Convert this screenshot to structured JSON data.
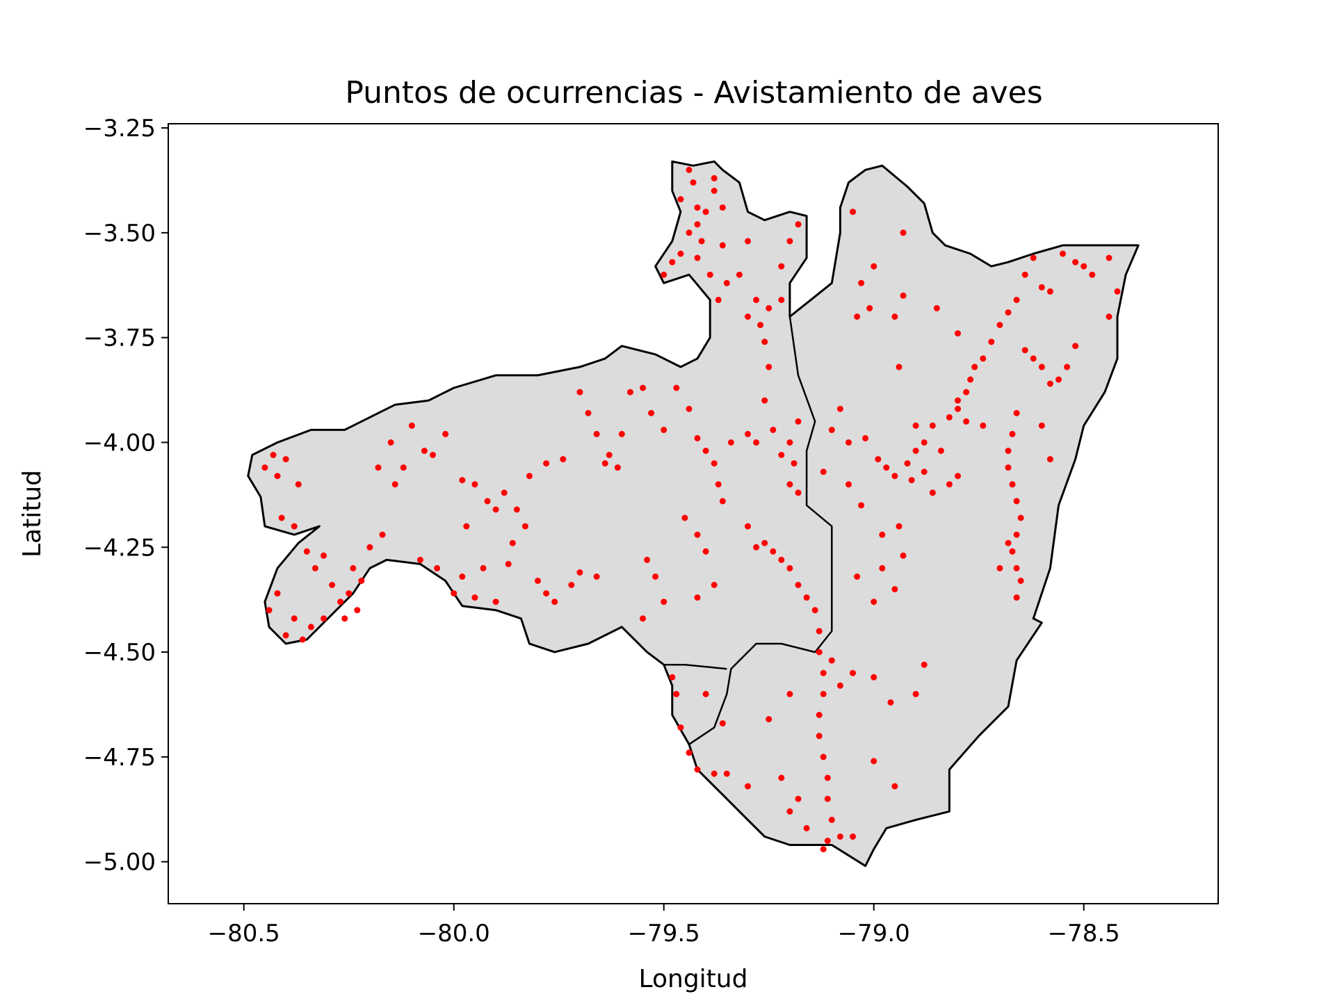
{
  "chart_data": {
    "type": "scatter",
    "title": "Puntos de ocurrencias - Avistamiento de aves",
    "xlabel": "Longitud",
    "ylabel": "Latitud",
    "xlim": [
      -80.68,
      -78.18
    ],
    "ylim": [
      -5.1,
      -3.24
    ],
    "xticks": [
      -80.5,
      -80.0,
      -79.5,
      -79.0,
      -78.5
    ],
    "xtick_labels": [
      "−80.5",
      "−80.0",
      "−79.5",
      "−79.0",
      "−78.5"
    ],
    "yticks": [
      -3.25,
      -3.5,
      -3.75,
      -4.0,
      -4.25,
      -4.5,
      -4.75,
      -5.0
    ],
    "ytick_labels": [
      "−3.25",
      "−3.50",
      "−3.75",
      "−4.00",
      "−4.25",
      "−4.50",
      "−4.75",
      "−5.00"
    ],
    "grid": false,
    "colors": {
      "region_fill": "#dcdcdc",
      "border": "#000000",
      "points": "#ff0000"
    },
    "region_outline": [
      [
        -80.32,
        -4.2
      ],
      [
        -80.37,
        -4.24
      ],
      [
        -80.42,
        -4.3
      ],
      [
        -80.45,
        -4.38
      ],
      [
        -80.44,
        -4.44
      ],
      [
        -80.4,
        -4.48
      ],
      [
        -80.35,
        -4.47
      ],
      [
        -80.3,
        -4.42
      ],
      [
        -80.24,
        -4.36
      ],
      [
        -80.2,
        -4.3
      ],
      [
        -80.16,
        -4.28
      ],
      [
        -80.08,
        -4.29
      ],
      [
        -80.02,
        -4.33
      ],
      [
        -79.98,
        -4.39
      ],
      [
        -79.9,
        -4.4
      ],
      [
        -79.84,
        -4.42
      ],
      [
        -79.82,
        -4.48
      ],
      [
        -79.76,
        -4.5
      ],
      [
        -79.68,
        -4.48
      ],
      [
        -79.6,
        -4.44
      ],
      [
        -79.54,
        -4.5
      ],
      [
        -79.5,
        -4.53
      ],
      [
        -79.48,
        -4.58
      ],
      [
        -79.48,
        -4.65
      ],
      [
        -79.44,
        -4.72
      ],
      [
        -79.42,
        -4.78
      ],
      [
        -79.36,
        -4.84
      ],
      [
        -79.3,
        -4.9
      ],
      [
        -79.26,
        -4.94
      ],
      [
        -79.2,
        -4.96
      ],
      [
        -79.1,
        -4.96
      ],
      [
        -79.02,
        -5.01
      ],
      [
        -79.0,
        -4.97
      ],
      [
        -78.97,
        -4.92
      ],
      [
        -78.9,
        -4.9
      ],
      [
        -78.82,
        -4.88
      ],
      [
        -78.82,
        -4.78
      ],
      [
        -78.75,
        -4.7
      ],
      [
        -78.68,
        -4.63
      ],
      [
        -78.66,
        -4.52
      ],
      [
        -78.6,
        -4.43
      ],
      [
        -78.62,
        -4.42
      ],
      [
        -78.58,
        -4.3
      ],
      [
        -78.56,
        -4.15
      ],
      [
        -78.52,
        -4.04
      ],
      [
        -78.5,
        -3.96
      ],
      [
        -78.45,
        -3.88
      ],
      [
        -78.42,
        -3.8
      ],
      [
        -78.42,
        -3.7
      ],
      [
        -78.4,
        -3.6
      ],
      [
        -78.37,
        -3.53
      ],
      [
        -78.45,
        -3.53
      ],
      [
        -78.55,
        -3.53
      ],
      [
        -78.62,
        -3.55
      ],
      [
        -78.68,
        -3.57
      ],
      [
        -78.72,
        -3.58
      ],
      [
        -78.77,
        -3.55
      ],
      [
        -78.83,
        -3.53
      ],
      [
        -78.86,
        -3.5
      ],
      [
        -78.88,
        -3.43
      ],
      [
        -78.92,
        -3.39
      ],
      [
        -78.98,
        -3.34
      ],
      [
        -79.02,
        -3.35
      ],
      [
        -79.06,
        -3.38
      ],
      [
        -79.08,
        -3.44
      ],
      [
        -79.08,
        -3.5
      ],
      [
        -79.1,
        -3.62
      ],
      [
        -79.15,
        -3.66
      ],
      [
        -79.2,
        -3.7
      ],
      [
        -79.2,
        -3.62
      ],
      [
        -79.16,
        -3.56
      ],
      [
        -79.16,
        -3.46
      ],
      [
        -79.2,
        -3.45
      ],
      [
        -79.26,
        -3.47
      ],
      [
        -79.3,
        -3.45
      ],
      [
        -79.32,
        -3.38
      ],
      [
        -79.36,
        -3.35
      ],
      [
        -79.38,
        -3.33
      ],
      [
        -79.43,
        -3.34
      ],
      [
        -79.48,
        -3.33
      ],
      [
        -79.48,
        -3.4
      ],
      [
        -79.46,
        -3.45
      ],
      [
        -79.48,
        -3.52
      ],
      [
        -79.52,
        -3.58
      ],
      [
        -79.5,
        -3.62
      ],
      [
        -79.44,
        -3.6
      ],
      [
        -79.39,
        -3.66
      ],
      [
        -79.39,
        -3.75
      ],
      [
        -79.42,
        -3.8
      ],
      [
        -79.46,
        -3.82
      ],
      [
        -79.52,
        -3.79
      ],
      [
        -79.6,
        -3.77
      ],
      [
        -79.64,
        -3.8
      ],
      [
        -79.7,
        -3.82
      ],
      [
        -79.8,
        -3.84
      ],
      [
        -79.9,
        -3.84
      ],
      [
        -80.0,
        -3.87
      ],
      [
        -80.06,
        -3.9
      ],
      [
        -80.14,
        -3.91
      ],
      [
        -80.2,
        -3.94
      ],
      [
        -80.26,
        -3.97
      ],
      [
        -80.34,
        -3.97
      ],
      [
        -80.42,
        -4.0
      ],
      [
        -80.48,
        -4.03
      ],
      [
        -80.49,
        -4.08
      ],
      [
        -80.46,
        -4.13
      ],
      [
        -80.45,
        -4.2
      ],
      [
        -80.38,
        -4.22
      ]
    ],
    "internal_borders": [
      [
        [
          -79.2,
          -3.7
        ],
        [
          -79.18,
          -3.84
        ],
        [
          -79.14,
          -3.95
        ],
        [
          -79.16,
          -4.02
        ],
        [
          -79.16,
          -4.15
        ],
        [
          -79.1,
          -4.2
        ],
        [
          -79.1,
          -4.38
        ],
        [
          -79.1,
          -4.45
        ],
        [
          -79.14,
          -4.5
        ],
        [
          -79.22,
          -4.48
        ],
        [
          -79.28,
          -4.48
        ],
        [
          -79.34,
          -4.54
        ],
        [
          -79.35,
          -4.6
        ],
        [
          -79.38,
          -4.68
        ],
        [
          -79.44,
          -4.72
        ]
      ],
      [
        [
          -79.35,
          -4.54
        ],
        [
          -79.45,
          -4.53
        ],
        [
          -79.5,
          -4.53
        ]
      ]
    ],
    "points": [
      [
        -80.45,
        -4.06
      ],
      [
        -80.43,
        -4.03
      ],
      [
        -80.42,
        -4.08
      ],
      [
        -80.4,
        -4.04
      ],
      [
        -80.41,
        -4.18
      ],
      [
        -80.38,
        -4.2
      ],
      [
        -80.37,
        -4.1
      ],
      [
        -80.35,
        -4.26
      ],
      [
        -80.33,
        -4.3
      ],
      [
        -80.31,
        -4.27
      ],
      [
        -80.29,
        -4.34
      ],
      [
        -80.27,
        -4.38
      ],
      [
        -80.25,
        -4.36
      ],
      [
        -80.23,
        -4.4
      ],
      [
        -80.24,
        -4.3
      ],
      [
        -80.22,
        -4.33
      ],
      [
        -80.38,
        -4.42
      ],
      [
        -80.34,
        -4.44
      ],
      [
        -80.31,
        -4.42
      ],
      [
        -80.36,
        -4.47
      ],
      [
        -80.42,
        -4.36
      ],
      [
        -80.44,
        -4.4
      ],
      [
        -80.4,
        -4.46
      ],
      [
        -80.26,
        -4.42
      ],
      [
        -80.2,
        -4.25
      ],
      [
        -80.17,
        -4.22
      ],
      [
        -80.14,
        -4.1
      ],
      [
        -80.12,
        -4.06
      ],
      [
        -80.1,
        -3.96
      ],
      [
        -80.07,
        -4.02
      ],
      [
        -80.05,
        -4.03
      ],
      [
        -80.02,
        -3.98
      ],
      [
        -80.15,
        -4.0
      ],
      [
        -80.18,
        -4.06
      ],
      [
        -79.98,
        -4.09
      ],
      [
        -79.95,
        -4.1
      ],
      [
        -79.92,
        -4.14
      ],
      [
        -79.9,
        -4.16
      ],
      [
        -79.88,
        -4.12
      ],
      [
        -79.85,
        -4.16
      ],
      [
        -79.83,
        -4.2
      ],
      [
        -79.86,
        -4.24
      ],
      [
        -79.87,
        -4.29
      ],
      [
        -79.82,
        -4.08
      ],
      [
        -79.78,
        -4.05
      ],
      [
        -79.74,
        -4.04
      ],
      [
        -79.8,
        -4.33
      ],
      [
        -79.78,
        -4.36
      ],
      [
        -79.76,
        -4.38
      ],
      [
        -79.72,
        -4.34
      ],
      [
        -79.7,
        -4.31
      ],
      [
        -79.66,
        -4.32
      ],
      [
        -79.9,
        -4.38
      ],
      [
        -79.95,
        -4.37
      ],
      [
        -79.98,
        -4.32
      ],
      [
        -80.0,
        -4.36
      ],
      [
        -80.04,
        -4.3
      ],
      [
        -80.08,
        -4.28
      ],
      [
        -79.93,
        -4.3
      ],
      [
        -79.97,
        -4.2
      ],
      [
        -79.7,
        -3.88
      ],
      [
        -79.68,
        -3.93
      ],
      [
        -79.66,
        -3.98
      ],
      [
        -79.64,
        -4.05
      ],
      [
        -79.63,
        -4.03
      ],
      [
        -79.61,
        -4.06
      ],
      [
        -79.6,
        -3.98
      ],
      [
        -79.58,
        -3.88
      ],
      [
        -79.55,
        -3.87
      ],
      [
        -79.53,
        -3.93
      ],
      [
        -79.5,
        -3.97
      ],
      [
        -79.47,
        -3.87
      ],
      [
        -79.44,
        -3.92
      ],
      [
        -79.42,
        -3.99
      ],
      [
        -79.4,
        -4.02
      ],
      [
        -79.38,
        -4.05
      ],
      [
        -79.37,
        -4.1
      ],
      [
        -79.36,
        -4.14
      ],
      [
        -79.34,
        -4.0
      ],
      [
        -79.3,
        -3.98
      ],
      [
        -79.28,
        -4.0
      ],
      [
        -79.45,
        -4.18
      ],
      [
        -79.42,
        -4.22
      ],
      [
        -79.4,
        -4.26
      ],
      [
        -79.5,
        -4.38
      ],
      [
        -79.52,
        -4.32
      ],
      [
        -79.54,
        -4.28
      ],
      [
        -79.55,
        -4.42
      ],
      [
        -79.42,
        -4.37
      ],
      [
        -79.38,
        -4.34
      ],
      [
        -79.3,
        -4.2
      ],
      [
        -79.28,
        -4.25
      ],
      [
        -79.26,
        -4.24
      ],
      [
        -79.24,
        -4.26
      ],
      [
        -79.22,
        -4.28
      ],
      [
        -79.2,
        -4.3
      ],
      [
        -79.18,
        -4.34
      ],
      [
        -79.16,
        -4.37
      ],
      [
        -79.14,
        -4.4
      ],
      [
        -79.13,
        -4.45
      ],
      [
        -79.13,
        -4.5
      ],
      [
        -79.12,
        -4.55
      ],
      [
        -79.12,
        -4.6
      ],
      [
        -79.13,
        -4.65
      ],
      [
        -79.13,
        -4.7
      ],
      [
        -79.12,
        -4.75
      ],
      [
        -79.11,
        -4.8
      ],
      [
        -79.11,
        -4.85
      ],
      [
        -79.1,
        -4.9
      ],
      [
        -79.11,
        -4.95
      ],
      [
        -79.12,
        -4.97
      ],
      [
        -79.08,
        -4.94
      ],
      [
        -79.05,
        -4.94
      ],
      [
        -79.16,
        -4.92
      ],
      [
        -79.2,
        -4.88
      ],
      [
        -79.18,
        -4.85
      ],
      [
        -79.3,
        -4.82
      ],
      [
        -79.35,
        -4.79
      ],
      [
        -79.38,
        -4.79
      ],
      [
        -79.42,
        -4.78
      ],
      [
        -79.44,
        -4.74
      ],
      [
        -79.46,
        -4.68
      ],
      [
        -79.47,
        -4.6
      ],
      [
        -79.48,
        -4.56
      ],
      [
        -79.4,
        -4.6
      ],
      [
        -79.36,
        -4.67
      ],
      [
        -79.2,
        -4.6
      ],
      [
        -79.25,
        -4.66
      ],
      [
        -79.22,
        -4.8
      ],
      [
        -79.05,
        -4.55
      ],
      [
        -79.0,
        -4.56
      ],
      [
        -78.96,
        -4.62
      ],
      [
        -78.95,
        -4.82
      ],
      [
        -79.0,
        -4.76
      ],
      [
        -78.88,
        -4.53
      ],
      [
        -78.9,
        -4.6
      ],
      [
        -79.1,
        -4.52
      ],
      [
        -79.08,
        -4.58
      ],
      [
        -79.2,
        -4.0
      ],
      [
        -79.18,
        -3.95
      ],
      [
        -79.19,
        -4.05
      ],
      [
        -79.2,
        -4.1
      ],
      [
        -79.18,
        -4.12
      ],
      [
        -79.22,
        -4.03
      ],
      [
        -79.24,
        -3.97
      ],
      [
        -79.26,
        -3.9
      ],
      [
        -79.25,
        -3.82
      ],
      [
        -79.26,
        -3.76
      ],
      [
        -79.27,
        -3.72
      ],
      [
        -79.25,
        -3.68
      ],
      [
        -79.22,
        -3.66
      ],
      [
        -79.28,
        -3.66
      ],
      [
        -79.3,
        -3.7
      ],
      [
        -79.22,
        -3.58
      ],
      [
        -79.2,
        -3.52
      ],
      [
        -79.18,
        -3.48
      ],
      [
        -79.32,
        -3.6
      ],
      [
        -79.35,
        -3.62
      ],
      [
        -79.3,
        -3.52
      ],
      [
        -79.36,
        -3.53
      ],
      [
        -79.38,
        -3.4
      ],
      [
        -79.38,
        -3.37
      ],
      [
        -79.4,
        -3.45
      ],
      [
        -79.42,
        -3.48
      ],
      [
        -79.44,
        -3.5
      ],
      [
        -79.46,
        -3.55
      ],
      [
        -79.48,
        -3.57
      ],
      [
        -79.5,
        -3.6
      ],
      [
        -79.42,
        -3.56
      ],
      [
        -79.41,
        -3.52
      ],
      [
        -79.39,
        -3.6
      ],
      [
        -79.37,
        -3.66
      ],
      [
        -79.43,
        -3.38
      ],
      [
        -79.44,
        -3.35
      ],
      [
        -79.46,
        -3.42
      ],
      [
        -79.42,
        -3.44
      ],
      [
        -79.36,
        -3.44
      ],
      [
        -79.1,
        -3.97
      ],
      [
        -79.06,
        -4.0
      ],
      [
        -79.02,
        -3.99
      ],
      [
        -78.99,
        -4.04
      ],
      [
        -78.97,
        -4.06
      ],
      [
        -78.95,
        -4.08
      ],
      [
        -78.92,
        -4.05
      ],
      [
        -78.9,
        -4.02
      ],
      [
        -78.88,
        -4.0
      ],
      [
        -78.86,
        -3.96
      ],
      [
        -78.82,
        -3.94
      ],
      [
        -78.8,
        -3.92
      ],
      [
        -78.78,
        -3.88
      ],
      [
        -78.77,
        -3.85
      ],
      [
        -78.76,
        -3.82
      ],
      [
        -78.74,
        -3.8
      ],
      [
        -78.72,
        -3.76
      ],
      [
        -78.7,
        -3.72
      ],
      [
        -78.68,
        -3.69
      ],
      [
        -78.66,
        -3.66
      ],
      [
        -78.64,
        -3.6
      ],
      [
        -78.62,
        -3.56
      ],
      [
        -78.6,
        -3.63
      ],
      [
        -78.58,
        -3.64
      ],
      [
        -78.55,
        -3.55
      ],
      [
        -78.52,
        -3.57
      ],
      [
        -78.5,
        -3.58
      ],
      [
        -78.48,
        -3.6
      ],
      [
        -78.44,
        -3.56
      ],
      [
        -78.42,
        -3.64
      ],
      [
        -78.44,
        -3.7
      ],
      [
        -78.52,
        -3.77
      ],
      [
        -78.54,
        -3.82
      ],
      [
        -78.56,
        -3.85
      ],
      [
        -78.58,
        -3.86
      ],
      [
        -78.6,
        -3.82
      ],
      [
        -78.62,
        -3.8
      ],
      [
        -78.64,
        -3.78
      ],
      [
        -78.66,
        -3.93
      ],
      [
        -78.67,
        -3.98
      ],
      [
        -78.68,
        -4.02
      ],
      [
        -78.68,
        -4.06
      ],
      [
        -78.67,
        -4.1
      ],
      [
        -78.66,
        -4.14
      ],
      [
        -78.65,
        -4.18
      ],
      [
        -78.66,
        -4.22
      ],
      [
        -78.67,
        -4.26
      ],
      [
        -78.66,
        -4.3
      ],
      [
        -78.65,
        -4.33
      ],
      [
        -78.66,
        -4.37
      ],
      [
        -78.7,
        -4.3
      ],
      [
        -78.68,
        -4.24
      ],
      [
        -78.6,
        -3.96
      ],
      [
        -78.58,
        -4.04
      ],
      [
        -78.84,
        -4.02
      ],
      [
        -78.82,
        -4.1
      ],
      [
        -78.8,
        -4.08
      ],
      [
        -78.9,
        -3.96
      ],
      [
        -79.0,
        -3.58
      ],
      [
        -79.01,
        -3.68
      ],
      [
        -78.93,
        -3.65
      ],
      [
        -78.94,
        -3.82
      ],
      [
        -78.95,
        -3.7
      ],
      [
        -78.85,
        -3.68
      ],
      [
        -78.8,
        -3.74
      ],
      [
        -79.08,
        -3.92
      ],
      [
        -79.12,
        -4.07
      ],
      [
        -79.06,
        -4.1
      ],
      [
        -79.03,
        -4.15
      ],
      [
        -78.98,
        -4.22
      ],
      [
        -78.94,
        -4.2
      ],
      [
        -78.93,
        -4.27
      ],
      [
        -78.98,
        -4.3
      ],
      [
        -79.0,
        -4.38
      ],
      [
        -78.95,
        -4.35
      ],
      [
        -79.04,
        -4.32
      ],
      [
        -79.04,
        -3.7
      ],
      [
        -79.03,
        -3.62
      ],
      [
        -79.05,
        -3.45
      ],
      [
        -78.93,
        -3.5
      ],
      [
        -78.8,
        -3.9
      ],
      [
        -78.78,
        -3.95
      ],
      [
        -78.74,
        -3.96
      ],
      [
        -78.88,
        -4.07
      ],
      [
        -78.86,
        -4.12
      ],
      [
        -78.91,
        -4.09
      ]
    ]
  }
}
